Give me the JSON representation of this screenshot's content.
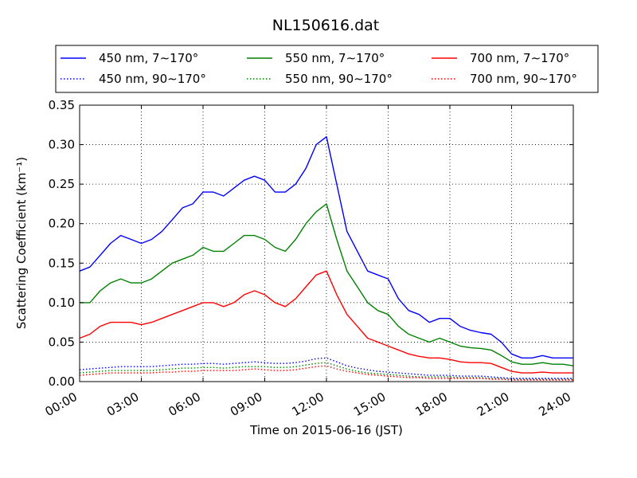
{
  "chart_data": {
    "type": "line",
    "title": "NL150616.dat",
    "xlabel": "Time on 2015-06-16 (JST)",
    "ylabel": "Scattering Coefficient (km⁻¹)",
    "xlim": [
      "00:00",
      "24:00"
    ],
    "ylim": [
      0,
      0.35
    ],
    "grid": true,
    "legend_position": "top",
    "x_ticks": [
      "00:00",
      "03:00",
      "06:00",
      "09:00",
      "12:00",
      "15:00",
      "18:00",
      "21:00",
      "24:00"
    ],
    "y_ticks": [
      "0.00",
      "0.05",
      "0.10",
      "0.15",
      "0.20",
      "0.25",
      "0.30",
      "0.35"
    ],
    "x": [
      "00:00",
      "00:30",
      "01:00",
      "01:30",
      "02:00",
      "02:30",
      "03:00",
      "03:30",
      "04:00",
      "04:30",
      "05:00",
      "05:30",
      "06:00",
      "06:30",
      "07:00",
      "07:30",
      "08:00",
      "08:30",
      "09:00",
      "09:30",
      "10:00",
      "10:30",
      "11:00",
      "11:30",
      "12:00",
      "12:30",
      "13:00",
      "13:30",
      "14:00",
      "14:30",
      "15:00",
      "15:30",
      "16:00",
      "16:30",
      "17:00",
      "17:30",
      "18:00",
      "18:30",
      "19:00",
      "19:30",
      "20:00",
      "20:30",
      "21:00",
      "21:30",
      "22:00",
      "22:30",
      "23:00",
      "23:30",
      "24:00"
    ],
    "series": [
      {
        "name": "450 nm, 7∼170°",
        "color": "#0000ff",
        "style": "solid",
        "values": [
          0.14,
          0.145,
          0.16,
          0.175,
          0.185,
          0.18,
          0.175,
          0.18,
          0.19,
          0.205,
          0.22,
          0.225,
          0.24,
          0.24,
          0.235,
          0.245,
          0.255,
          0.26,
          0.255,
          0.24,
          0.24,
          0.25,
          0.27,
          0.3,
          0.31,
          0.25,
          0.19,
          0.165,
          0.14,
          0.135,
          0.13,
          0.105,
          0.09,
          0.085,
          0.075,
          0.08,
          0.08,
          0.07,
          0.065,
          0.062,
          0.06,
          0.05,
          0.035,
          0.03,
          0.03,
          0.033,
          0.03,
          0.03,
          0.03
        ]
      },
      {
        "name": "550 nm, 7∼170°",
        "color": "#008000",
        "style": "solid",
        "values": [
          0.1,
          0.1,
          0.115,
          0.125,
          0.13,
          0.125,
          0.125,
          0.13,
          0.14,
          0.15,
          0.155,
          0.16,
          0.17,
          0.165,
          0.165,
          0.175,
          0.185,
          0.185,
          0.18,
          0.17,
          0.165,
          0.18,
          0.2,
          0.215,
          0.225,
          0.18,
          0.14,
          0.12,
          0.1,
          0.09,
          0.085,
          0.07,
          0.06,
          0.055,
          0.05,
          0.055,
          0.05,
          0.045,
          0.043,
          0.042,
          0.04,
          0.033,
          0.025,
          0.022,
          0.022,
          0.024,
          0.022,
          0.022,
          0.02
        ]
      },
      {
        "name": "700 nm, 7∼170°",
        "color": "#ff0000",
        "style": "solid",
        "values": [
          0.055,
          0.06,
          0.07,
          0.075,
          0.075,
          0.075,
          0.072,
          0.075,
          0.08,
          0.085,
          0.09,
          0.095,
          0.1,
          0.1,
          0.095,
          0.1,
          0.11,
          0.115,
          0.11,
          0.1,
          0.095,
          0.105,
          0.12,
          0.135,
          0.14,
          0.11,
          0.085,
          0.07,
          0.055,
          0.05,
          0.045,
          0.04,
          0.035,
          0.032,
          0.03,
          0.03,
          0.028,
          0.025,
          0.024,
          0.024,
          0.023,
          0.018,
          0.013,
          0.011,
          0.011,
          0.012,
          0.011,
          0.011,
          0.011
        ]
      },
      {
        "name": "450 nm, 90∼170°",
        "color": "#0000ff",
        "style": "dotted",
        "values": [
          0.015,
          0.016,
          0.017,
          0.018,
          0.019,
          0.019,
          0.019,
          0.019,
          0.02,
          0.021,
          0.022,
          0.022,
          0.023,
          0.023,
          0.022,
          0.023,
          0.024,
          0.025,
          0.024,
          0.023,
          0.023,
          0.024,
          0.026,
          0.029,
          0.03,
          0.025,
          0.02,
          0.017,
          0.015,
          0.013,
          0.012,
          0.011,
          0.01,
          0.009,
          0.008,
          0.008,
          0.008,
          0.007,
          0.007,
          0.007,
          0.006,
          0.005,
          0.004,
          0.004,
          0.004,
          0.004,
          0.004,
          0.004,
          0.004
        ]
      },
      {
        "name": "550 nm, 90∼170°",
        "color": "#008000",
        "style": "dotted",
        "values": [
          0.011,
          0.012,
          0.013,
          0.014,
          0.014,
          0.014,
          0.014,
          0.014,
          0.015,
          0.016,
          0.017,
          0.017,
          0.018,
          0.018,
          0.017,
          0.018,
          0.019,
          0.019,
          0.019,
          0.018,
          0.018,
          0.019,
          0.021,
          0.023,
          0.024,
          0.02,
          0.016,
          0.013,
          0.011,
          0.01,
          0.009,
          0.008,
          0.007,
          0.006,
          0.006,
          0.006,
          0.006,
          0.005,
          0.005,
          0.005,
          0.004,
          0.004,
          0.003,
          0.003,
          0.003,
          0.003,
          0.003,
          0.003,
          0.003
        ]
      },
      {
        "name": "700 nm, 90∼170°",
        "color": "#ff0000",
        "style": "dotted",
        "values": [
          0.008,
          0.009,
          0.01,
          0.011,
          0.011,
          0.011,
          0.011,
          0.011,
          0.012,
          0.012,
          0.013,
          0.013,
          0.014,
          0.014,
          0.014,
          0.014,
          0.015,
          0.016,
          0.015,
          0.014,
          0.014,
          0.015,
          0.017,
          0.019,
          0.02,
          0.016,
          0.013,
          0.011,
          0.009,
          0.008,
          0.007,
          0.006,
          0.005,
          0.005,
          0.004,
          0.004,
          0.004,
          0.004,
          0.004,
          0.004,
          0.003,
          0.003,
          0.002,
          0.002,
          0.002,
          0.002,
          0.002,
          0.002,
          0.002
        ]
      }
    ]
  }
}
